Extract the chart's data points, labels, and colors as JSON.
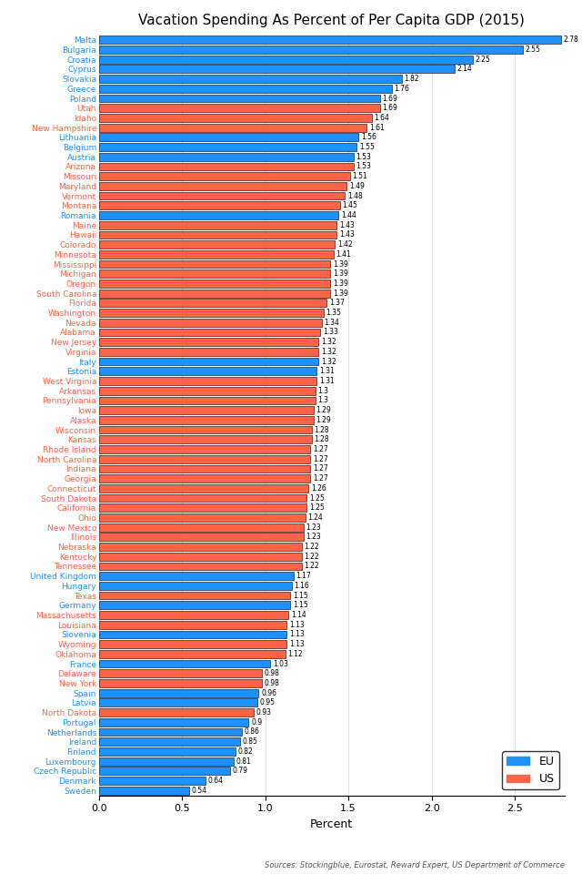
{
  "title": "Vacation Spending As Percent of Per Capita GDP (2015)",
  "xlabel": "Percent",
  "source": "Sources: Stockingblue, Eurostat, Reward Expert, US Department of Commerce",
  "categories": [
    "Malta",
    "Bulgaria",
    "Croatia",
    "Cyprus",
    "Slovakia",
    "Greece",
    "Poland",
    "Utah",
    "Idaho",
    "New Hampshire",
    "Lithuania",
    "Belgium",
    "Austria",
    "Arizona",
    "Missouri",
    "Maryland",
    "Vermont",
    "Montana",
    "Romania",
    "Maine",
    "Hawaii",
    "Colorado",
    "Minnesota",
    "Mississippi",
    "Michigan",
    "Oregon",
    "South Carolina",
    "Florida",
    "Washington",
    "Nevada",
    "Alabama",
    "New Jersey",
    "Virginia",
    "Italy",
    "Estonia",
    "West Virginia",
    "Arkansas",
    "Pennsylvania",
    "Iowa",
    "Alaska",
    "Wisconsin",
    "Kansas",
    "Rhode Island",
    "North Carolina",
    "Indiana",
    "Georgia",
    "Connecticut",
    "South Dakota",
    "California",
    "Ohio",
    "New Mexico",
    "Illinois",
    "Nebraska",
    "Kentucky",
    "Tennessee",
    "United Kingdom",
    "Hungary",
    "Texas",
    "Germany",
    "Massachusetts",
    "Louisiana",
    "Slovenia",
    "Wyoming",
    "Oklahoma",
    "France",
    "Delaware",
    "New York",
    "Spain",
    "Latvia",
    "North Dakota",
    "Portugal",
    "Netherlands",
    "Ireland",
    "Finland",
    "Luxembourg",
    "Czech Republic",
    "Denmark",
    "Sweden"
  ],
  "values": [
    2.78,
    2.55,
    2.25,
    2.14,
    1.82,
    1.76,
    1.69,
    1.69,
    1.64,
    1.61,
    1.56,
    1.55,
    1.53,
    1.53,
    1.51,
    1.49,
    1.48,
    1.45,
    1.44,
    1.43,
    1.43,
    1.42,
    1.41,
    1.39,
    1.39,
    1.39,
    1.39,
    1.37,
    1.35,
    1.34,
    1.33,
    1.32,
    1.32,
    1.32,
    1.31,
    1.31,
    1.3,
    1.3,
    1.29,
    1.29,
    1.28,
    1.28,
    1.27,
    1.27,
    1.27,
    1.27,
    1.26,
    1.25,
    1.25,
    1.24,
    1.23,
    1.23,
    1.22,
    1.22,
    1.22,
    1.17,
    1.16,
    1.15,
    1.15,
    1.14,
    1.13,
    1.13,
    1.13,
    1.12,
    1.03,
    0.98,
    0.98,
    0.96,
    0.95,
    0.93,
    0.9,
    0.86,
    0.85,
    0.82,
    0.81,
    0.79,
    0.64,
    0.54
  ],
  "is_eu": [
    true,
    true,
    true,
    true,
    true,
    true,
    true,
    false,
    false,
    false,
    true,
    true,
    true,
    false,
    false,
    false,
    false,
    false,
    true,
    false,
    false,
    false,
    false,
    false,
    false,
    false,
    false,
    false,
    false,
    false,
    false,
    false,
    false,
    true,
    true,
    false,
    false,
    false,
    false,
    false,
    false,
    false,
    false,
    false,
    false,
    false,
    false,
    false,
    false,
    false,
    false,
    false,
    false,
    false,
    false,
    true,
    true,
    false,
    true,
    false,
    false,
    true,
    false,
    false,
    true,
    false,
    false,
    true,
    true,
    false,
    true,
    true,
    true,
    true,
    true,
    true,
    true,
    true
  ],
  "eu_color": "#1e90ff",
  "us_color": "#ff6347",
  "bg_color": "#ffffff",
  "xlim": [
    0,
    2.8
  ],
  "bar_height": 0.82,
  "value_fontsize": 5.5,
  "label_fontsize": 6.5,
  "title_fontsize": 11
}
